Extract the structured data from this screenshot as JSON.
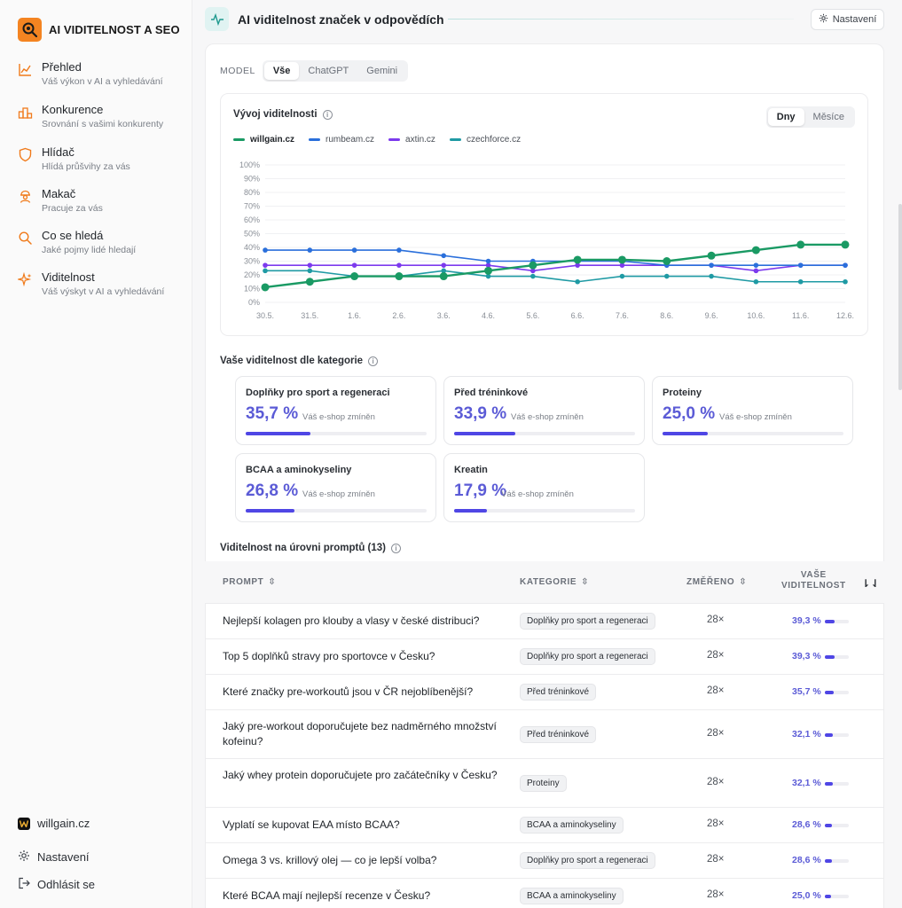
{
  "brand": {
    "name": "AI VIDITELNOST A SEO"
  },
  "nav": [
    {
      "title": "Přehled",
      "sub": "Váš výkon v AI a vyhledávání",
      "icon": "line-chart-icon"
    },
    {
      "title": "Konkurence",
      "sub": "Srovnání s vašimi konkurenty",
      "icon": "podium-icon"
    },
    {
      "title": "Hlídač",
      "sub": "Hlídá průšvihy za vás",
      "icon": "shield-icon"
    },
    {
      "title": "Makač",
      "sub": "Pracuje za vás",
      "icon": "worker-icon"
    },
    {
      "title": "Co se hledá",
      "sub": "Jaké pojmy lidé hledají",
      "icon": "search-icon"
    },
    {
      "title": "Viditelnost",
      "sub": "Váš výskyt v AI a vyhledávání",
      "icon": "sparkle-icon"
    }
  ],
  "footer": {
    "site": "willgain.cz",
    "settings": "Nastavení",
    "logout": "Odhlásit se"
  },
  "header": {
    "title": "AI viditelnost značek v odpovědích",
    "settings_label": "Nastavení"
  },
  "model_filter": {
    "label": "MODEL",
    "options": [
      "Vše",
      "ChatGPT",
      "Gemini"
    ],
    "selected": "Vše"
  },
  "trend": {
    "title": "Vývoj viditelnosti",
    "range_options": [
      "Dny",
      "Měsíce"
    ],
    "range_selected": "Dny"
  },
  "chart_data": {
    "type": "line",
    "title": "Vývoj viditelnosti",
    "x": [
      "30.5.",
      "31.5.",
      "1.6.",
      "2.6.",
      "3.6.",
      "4.6.",
      "5.6.",
      "6.6.",
      "7.6.",
      "8.6.",
      "9.6.",
      "10.6.",
      "11.6.",
      "12.6."
    ],
    "y_ticks": [
      "100%",
      "90%",
      "80%",
      "70%",
      "60%",
      "50%",
      "40%",
      "30%",
      "20%",
      "10%",
      "0%"
    ],
    "ylim": [
      0,
      100
    ],
    "grid": true,
    "legend": "top-left",
    "series": [
      {
        "name": "willgain.cz",
        "color": "#1a9a64",
        "values": [
          11,
          15,
          19,
          19,
          19,
          23,
          27,
          31,
          31,
          30,
          34,
          38,
          42,
          42
        ]
      },
      {
        "name": "rumbeam.cz",
        "color": "#2a6fdb",
        "values": [
          38,
          38,
          38,
          38,
          34,
          30,
          30,
          30,
          30,
          27,
          27,
          27,
          27,
          27
        ]
      },
      {
        "name": "axtin.cz",
        "color": "#7c3aed",
        "values": [
          27,
          27,
          27,
          27,
          27,
          27,
          23,
          27,
          27,
          27,
          27,
          23,
          27,
          27
        ]
      },
      {
        "name": "czechforce.cz",
        "color": "#1f9aa4",
        "values": [
          23,
          23,
          19,
          19,
          23,
          19,
          19,
          15,
          19,
          19,
          19,
          15,
          15,
          15
        ]
      }
    ]
  },
  "categories": {
    "title": "Vaše viditelnost dle kategorie",
    "note": "Váš e-shop zmíněn",
    "items": [
      {
        "name": "Doplňky pro sport a regeneraci",
        "value_label": "35,7 %",
        "value": 35.7
      },
      {
        "name": "Před tréninkové",
        "value_label": "33,9 %",
        "value": 33.9
      },
      {
        "name": "Proteiny",
        "value_label": "25,0 %",
        "value": 25.0
      },
      {
        "name": "BCAA a aminokyseliny",
        "value_label": "26,8 %",
        "value": 26.8
      },
      {
        "name": "Kreatin",
        "value_label": "17,9 %",
        "value": 17.9
      }
    ]
  },
  "prompts": {
    "title": "Viditelnost na úrovni promptů (13)",
    "columns": {
      "prompt": "PROMPT",
      "category": "KATEGORIE",
      "measured": "ZMĚŘENO",
      "vis_line1": "VAŠE",
      "vis_line2": "VIDITELNOST"
    },
    "rows": [
      {
        "prompt": "Nejlepší kolagen pro klouby a vlasy v české distribuci?",
        "category": "Doplňky pro sport a regeneraci",
        "measured": "28×",
        "vis_label": "39,3 %",
        "vis": 39.3
      },
      {
        "prompt": "Top 5 doplňků stravy pro sportovce v Česku?",
        "category": "Doplňky pro sport a regeneraci",
        "measured": "28×",
        "vis_label": "39,3 %",
        "vis": 39.3
      },
      {
        "prompt": "Které značky pre-workoutů jsou v ČR nejoblíbenější?",
        "category": "Před tréninkové",
        "measured": "28×",
        "vis_label": "35,7 %",
        "vis": 35.7
      },
      {
        "prompt": "Jaký pre-workout doporučujete bez nadměrného množství kofeinu?",
        "category": "Před tréninkové",
        "measured": "28×",
        "vis_label": "32,1 %",
        "vis": 32.1
      },
      {
        "prompt": "Jaký whey protein doporučujete pro začátečníky v Česku?",
        "category": "Proteiny",
        "measured": "28×",
        "vis_label": "32,1 %",
        "vis": 32.1
      },
      {
        "prompt": "Vyplatí se kupovat EAA místo BCAA?",
        "category": "BCAA a aminokyseliny",
        "measured": "28×",
        "vis_label": "28,6 %",
        "vis": 28.6
      },
      {
        "prompt": "Omega 3 vs. krillový olej — co je lepší volba?",
        "category": "Doplňky pro sport a regeneraci",
        "measured": "28×",
        "vis_label": "28,6 %",
        "vis": 28.6
      },
      {
        "prompt": "Které BCAA mají nejlepší recenze v Česku?",
        "category": "BCAA a aminokyseliny",
        "measured": "28×",
        "vis_label": "25,0 %",
        "vis": 25.0
      }
    ]
  }
}
